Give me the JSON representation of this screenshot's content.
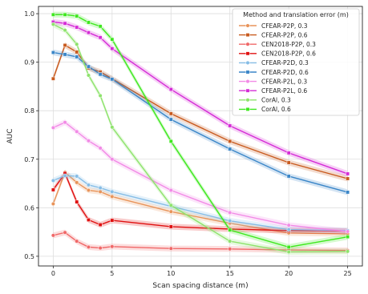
{
  "chart_data": {
    "type": "line",
    "xlabel": "Scan spacing distance (m)",
    "ylabel": "AUC",
    "xlim": [
      -1.25,
      26.25
    ],
    "ylim": [
      0.48,
      1.015
    ],
    "xticks": [
      0,
      5,
      10,
      15,
      20,
      25
    ],
    "yticks": [
      0.5,
      0.6,
      0.7,
      0.8,
      0.9,
      1.0
    ],
    "xtick_labels": [
      "0",
      "5",
      "10",
      "15",
      "20",
      "25"
    ],
    "ytick_labels": [
      "0.5",
      "0.6",
      "0.7",
      "0.8",
      "0.9",
      "1.0"
    ],
    "grid": true,
    "legend_title": "Method and translation error (m)",
    "legend_position": "top-right",
    "x": [
      0,
      1,
      2,
      3,
      4,
      5,
      10,
      15,
      20,
      25
    ],
    "series": [
      {
        "name": "CFEAR-P2P, 0.3",
        "color": "#e8945a",
        "marker": "circle",
        "values": [
          0.608,
          0.673,
          0.652,
          0.636,
          0.633,
          0.623,
          0.592,
          0.568,
          0.548,
          0.546
        ]
      },
      {
        "name": "CFEAR-P2P, 0.6",
        "color": "#c85a1e",
        "marker": "square",
        "values": [
          0.866,
          0.935,
          0.921,
          0.888,
          0.88,
          0.866,
          0.794,
          0.737,
          0.693,
          0.66
        ]
      },
      {
        "name": "CEN2018-P2P, 0.3",
        "color": "#f06868",
        "marker": "circle",
        "values": [
          0.543,
          0.549,
          0.531,
          0.519,
          0.517,
          0.52,
          0.516,
          0.515,
          0.513,
          0.512
        ]
      },
      {
        "name": "CEN2018-P2P, 0.6",
        "color": "#e01010",
        "marker": "square",
        "values": [
          0.637,
          0.671,
          0.612,
          0.575,
          0.565,
          0.574,
          0.561,
          0.556,
          0.553,
          0.552
        ]
      },
      {
        "name": "CFEAR-P2D, 0.3",
        "color": "#86bde6",
        "marker": "circle",
        "values": [
          0.656,
          0.666,
          0.665,
          0.647,
          0.641,
          0.633,
          0.603,
          0.573,
          0.555,
          0.553
        ]
      },
      {
        "name": "CFEAR-P2D, 0.6",
        "color": "#3a86c8",
        "marker": "square",
        "values": [
          0.92,
          0.916,
          0.911,
          0.891,
          0.875,
          0.865,
          0.782,
          0.721,
          0.665,
          0.632
        ]
      },
      {
        "name": "CFEAR-P2L, 0.3",
        "color": "#f28ae6",
        "marker": "circle",
        "values": [
          0.765,
          0.776,
          0.757,
          0.738,
          0.723,
          0.7,
          0.636,
          0.59,
          0.564,
          0.551
        ]
      },
      {
        "name": "CFEAR-P2L, 0.6",
        "color": "#d52bd6",
        "marker": "square",
        "values": [
          0.983,
          0.98,
          0.972,
          0.961,
          0.951,
          0.928,
          0.844,
          0.769,
          0.713,
          0.67
        ]
      },
      {
        "name": "CorAl, 0.3",
        "color": "#8ee36c",
        "marker": "circle",
        "values": [
          0.978,
          0.966,
          0.937,
          0.873,
          0.831,
          0.766,
          0.605,
          0.531,
          0.509,
          0.51
        ]
      },
      {
        "name": "CorAl, 0.6",
        "color": "#3ee81e",
        "marker": "square",
        "values": [
          0.998,
          0.998,
          0.995,
          0.982,
          0.974,
          0.947,
          0.737,
          0.554,
          0.519,
          0.54
        ]
      }
    ]
  }
}
